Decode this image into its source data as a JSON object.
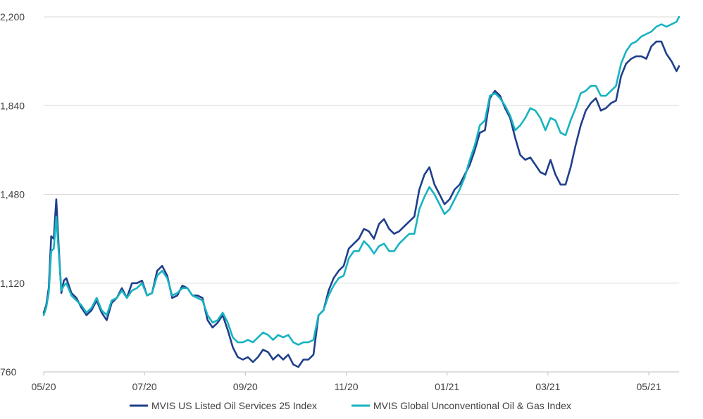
{
  "chart_data": {
    "type": "line",
    "title": "",
    "xlabel": "",
    "ylabel": "",
    "ylim": [
      760,
      2200
    ],
    "y_ticks": [
      {
        "value": 760,
        "label": "760"
      },
      {
        "value": 1120,
        "label": "1,120"
      },
      {
        "value": 1480,
        "label": "1,480"
      },
      {
        "value": 1840,
        "label": "1,840"
      },
      {
        "value": 2200,
        "label": "2,200"
      }
    ],
    "x_range": [
      0,
      12.6
    ],
    "x_ticks": [
      {
        "pos": 0,
        "label": "05/20"
      },
      {
        "pos": 2,
        "label": "07/20"
      },
      {
        "pos": 4,
        "label": "09/20"
      },
      {
        "pos": 6,
        "label": "11/20"
      },
      {
        "pos": 8,
        "label": "01/21"
      },
      {
        "pos": 10,
        "label": "03/21"
      },
      {
        "pos": 12,
        "label": "05/21"
      }
    ],
    "grid": true,
    "legend_position": "bottom",
    "series": [
      {
        "name": "MVIS US Listed Oil Services 25 Index",
        "color": "#1f3f8b",
        "points": [
          [
            0.0,
            1000
          ],
          [
            0.05,
            1030
          ],
          [
            0.1,
            1100
          ],
          [
            0.15,
            1310
          ],
          [
            0.2,
            1300
          ],
          [
            0.25,
            1460
          ],
          [
            0.3,
            1260
          ],
          [
            0.35,
            1080
          ],
          [
            0.4,
            1130
          ],
          [
            0.45,
            1140
          ],
          [
            0.55,
            1080
          ],
          [
            0.65,
            1060
          ],
          [
            0.75,
            1020
          ],
          [
            0.85,
            990
          ],
          [
            0.95,
            1010
          ],
          [
            1.05,
            1050
          ],
          [
            1.15,
            1000
          ],
          [
            1.25,
            970
          ],
          [
            1.35,
            1040
          ],
          [
            1.45,
            1060
          ],
          [
            1.55,
            1100
          ],
          [
            1.65,
            1060
          ],
          [
            1.75,
            1120
          ],
          [
            1.85,
            1120
          ],
          [
            1.95,
            1130
          ],
          [
            2.05,
            1070
          ],
          [
            2.15,
            1080
          ],
          [
            2.25,
            1170
          ],
          [
            2.35,
            1190
          ],
          [
            2.45,
            1150
          ],
          [
            2.55,
            1060
          ],
          [
            2.65,
            1070
          ],
          [
            2.75,
            1110
          ],
          [
            2.85,
            1100
          ],
          [
            2.95,
            1070
          ],
          [
            3.05,
            1070
          ],
          [
            3.15,
            1060
          ],
          [
            3.25,
            970
          ],
          [
            3.35,
            940
          ],
          [
            3.45,
            960
          ],
          [
            3.55,
            990
          ],
          [
            3.65,
            930
          ],
          [
            3.75,
            860
          ],
          [
            3.85,
            820
          ],
          [
            3.95,
            810
          ],
          [
            4.05,
            820
          ],
          [
            4.15,
            800
          ],
          [
            4.25,
            820
          ],
          [
            4.35,
            850
          ],
          [
            4.45,
            840
          ],
          [
            4.55,
            810
          ],
          [
            4.65,
            830
          ],
          [
            4.75,
            810
          ],
          [
            4.85,
            830
          ],
          [
            4.95,
            790
          ],
          [
            5.05,
            780
          ],
          [
            5.15,
            810
          ],
          [
            5.25,
            810
          ],
          [
            5.35,
            830
          ],
          [
            5.45,
            990
          ],
          [
            5.55,
            1010
          ],
          [
            5.65,
            1090
          ],
          [
            5.75,
            1140
          ],
          [
            5.85,
            1170
          ],
          [
            5.95,
            1190
          ],
          [
            6.05,
            1260
          ],
          [
            6.15,
            1280
          ],
          [
            6.25,
            1300
          ],
          [
            6.35,
            1340
          ],
          [
            6.45,
            1330
          ],
          [
            6.55,
            1300
          ],
          [
            6.65,
            1360
          ],
          [
            6.75,
            1380
          ],
          [
            6.85,
            1340
          ],
          [
            6.95,
            1320
          ],
          [
            7.05,
            1330
          ],
          [
            7.15,
            1350
          ],
          [
            7.25,
            1370
          ],
          [
            7.35,
            1390
          ],
          [
            7.45,
            1500
          ],
          [
            7.55,
            1560
          ],
          [
            7.65,
            1590
          ],
          [
            7.75,
            1520
          ],
          [
            7.85,
            1480
          ],
          [
            7.95,
            1440
          ],
          [
            8.05,
            1460
          ],
          [
            8.15,
            1500
          ],
          [
            8.25,
            1520
          ],
          [
            8.35,
            1560
          ],
          [
            8.45,
            1600
          ],
          [
            8.55,
            1660
          ],
          [
            8.65,
            1730
          ],
          [
            8.75,
            1740
          ],
          [
            8.85,
            1870
          ],
          [
            8.95,
            1900
          ],
          [
            9.05,
            1880
          ],
          [
            9.15,
            1830
          ],
          [
            9.25,
            1790
          ],
          [
            9.35,
            1710
          ],
          [
            9.45,
            1640
          ],
          [
            9.55,
            1620
          ],
          [
            9.65,
            1630
          ],
          [
            9.75,
            1600
          ],
          [
            9.85,
            1570
          ],
          [
            9.95,
            1560
          ],
          [
            10.05,
            1620
          ],
          [
            10.15,
            1560
          ],
          [
            10.25,
            1520
          ],
          [
            10.35,
            1520
          ],
          [
            10.45,
            1590
          ],
          [
            10.55,
            1680
          ],
          [
            10.65,
            1760
          ],
          [
            10.75,
            1820
          ],
          [
            10.85,
            1850
          ],
          [
            10.95,
            1870
          ],
          [
            11.05,
            1820
          ],
          [
            11.15,
            1830
          ],
          [
            11.25,
            1850
          ],
          [
            11.35,
            1860
          ],
          [
            11.45,
            1960
          ],
          [
            11.55,
            2010
          ],
          [
            11.65,
            2030
          ],
          [
            11.75,
            2040
          ],
          [
            11.85,
            2040
          ],
          [
            11.95,
            2030
          ],
          [
            12.05,
            2080
          ],
          [
            12.15,
            2100
          ],
          [
            12.25,
            2100
          ],
          [
            12.35,
            2050
          ],
          [
            12.45,
            2020
          ],
          [
            12.55,
            1980
          ],
          [
            12.6,
            2000
          ]
        ]
      },
      {
        "name": "MVIS Global Unconventional Oil & Gas Index",
        "color": "#17b3c1",
        "points": [
          [
            0.0,
            990
          ],
          [
            0.05,
            1020
          ],
          [
            0.1,
            1080
          ],
          [
            0.15,
            1250
          ],
          [
            0.2,
            1260
          ],
          [
            0.25,
            1390
          ],
          [
            0.3,
            1240
          ],
          [
            0.35,
            1090
          ],
          [
            0.4,
            1110
          ],
          [
            0.45,
            1120
          ],
          [
            0.55,
            1070
          ],
          [
            0.65,
            1050
          ],
          [
            0.75,
            1030
          ],
          [
            0.85,
            1000
          ],
          [
            0.95,
            1020
          ],
          [
            1.05,
            1060
          ],
          [
            1.15,
            1010
          ],
          [
            1.25,
            990
          ],
          [
            1.35,
            1050
          ],
          [
            1.45,
            1060
          ],
          [
            1.55,
            1090
          ],
          [
            1.65,
            1060
          ],
          [
            1.75,
            1090
          ],
          [
            1.85,
            1100
          ],
          [
            1.95,
            1120
          ],
          [
            2.05,
            1070
          ],
          [
            2.15,
            1080
          ],
          [
            2.25,
            1150
          ],
          [
            2.35,
            1170
          ],
          [
            2.45,
            1140
          ],
          [
            2.55,
            1070
          ],
          [
            2.65,
            1080
          ],
          [
            2.75,
            1100
          ],
          [
            2.85,
            1100
          ],
          [
            2.95,
            1070
          ],
          [
            3.05,
            1060
          ],
          [
            3.15,
            1050
          ],
          [
            3.25,
            990
          ],
          [
            3.35,
            960
          ],
          [
            3.45,
            970
          ],
          [
            3.55,
            1000
          ],
          [
            3.65,
            960
          ],
          [
            3.75,
            900
          ],
          [
            3.85,
            880
          ],
          [
            3.95,
            880
          ],
          [
            4.05,
            890
          ],
          [
            4.15,
            880
          ],
          [
            4.25,
            900
          ],
          [
            4.35,
            920
          ],
          [
            4.45,
            910
          ],
          [
            4.55,
            890
          ],
          [
            4.65,
            910
          ],
          [
            4.75,
            900
          ],
          [
            4.85,
            910
          ],
          [
            4.95,
            880
          ],
          [
            5.05,
            870
          ],
          [
            5.15,
            880
          ],
          [
            5.25,
            880
          ],
          [
            5.35,
            890
          ],
          [
            5.45,
            990
          ],
          [
            5.55,
            1010
          ],
          [
            5.65,
            1070
          ],
          [
            5.75,
            1110
          ],
          [
            5.85,
            1140
          ],
          [
            5.95,
            1150
          ],
          [
            6.05,
            1220
          ],
          [
            6.15,
            1250
          ],
          [
            6.25,
            1250
          ],
          [
            6.35,
            1290
          ],
          [
            6.45,
            1270
          ],
          [
            6.55,
            1240
          ],
          [
            6.65,
            1270
          ],
          [
            6.75,
            1280
          ],
          [
            6.85,
            1250
          ],
          [
            6.95,
            1250
          ],
          [
            7.05,
            1280
          ],
          [
            7.15,
            1300
          ],
          [
            7.25,
            1320
          ],
          [
            7.35,
            1320
          ],
          [
            7.45,
            1420
          ],
          [
            7.55,
            1470
          ],
          [
            7.65,
            1510
          ],
          [
            7.75,
            1480
          ],
          [
            7.85,
            1440
          ],
          [
            7.95,
            1400
          ],
          [
            8.05,
            1420
          ],
          [
            8.15,
            1460
          ],
          [
            8.25,
            1500
          ],
          [
            8.35,
            1550
          ],
          [
            8.45,
            1620
          ],
          [
            8.55,
            1680
          ],
          [
            8.65,
            1760
          ],
          [
            8.75,
            1780
          ],
          [
            8.85,
            1880
          ],
          [
            8.95,
            1890
          ],
          [
            9.05,
            1870
          ],
          [
            9.15,
            1840
          ],
          [
            9.25,
            1800
          ],
          [
            9.35,
            1740
          ],
          [
            9.45,
            1760
          ],
          [
            9.55,
            1790
          ],
          [
            9.65,
            1830
          ],
          [
            9.75,
            1820
          ],
          [
            9.85,
            1790
          ],
          [
            9.95,
            1740
          ],
          [
            10.05,
            1790
          ],
          [
            10.15,
            1780
          ],
          [
            10.25,
            1730
          ],
          [
            10.35,
            1720
          ],
          [
            10.45,
            1780
          ],
          [
            10.55,
            1830
          ],
          [
            10.65,
            1890
          ],
          [
            10.75,
            1900
          ],
          [
            10.85,
            1920
          ],
          [
            10.95,
            1920
          ],
          [
            11.05,
            1880
          ],
          [
            11.15,
            1880
          ],
          [
            11.25,
            1900
          ],
          [
            11.35,
            1920
          ],
          [
            11.45,
            2010
          ],
          [
            11.55,
            2060
          ],
          [
            11.65,
            2090
          ],
          [
            11.75,
            2100
          ],
          [
            11.85,
            2120
          ],
          [
            11.95,
            2130
          ],
          [
            12.05,
            2140
          ],
          [
            12.15,
            2160
          ],
          [
            12.25,
            2170
          ],
          [
            12.35,
            2160
          ],
          [
            12.45,
            2170
          ],
          [
            12.55,
            2180
          ],
          [
            12.6,
            2200
          ]
        ]
      }
    ]
  }
}
